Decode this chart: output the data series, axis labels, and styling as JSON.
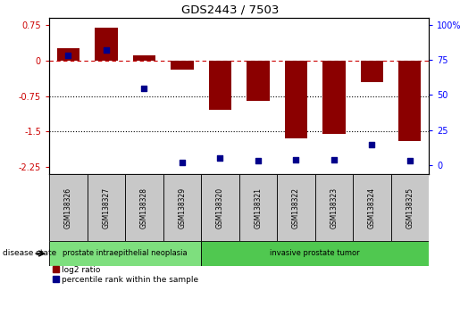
{
  "title": "GDS2443 / 7503",
  "samples": [
    "GSM138326",
    "GSM138327",
    "GSM138328",
    "GSM138329",
    "GSM138320",
    "GSM138321",
    "GSM138322",
    "GSM138323",
    "GSM138324",
    "GSM138325"
  ],
  "log2_ratio": [
    0.25,
    0.7,
    0.1,
    -0.2,
    -1.05,
    -0.85,
    -1.65,
    -1.55,
    -0.45,
    -1.7
  ],
  "percentile_rank": [
    78,
    82,
    55,
    2,
    5,
    3,
    4,
    4,
    15,
    3
  ],
  "groups": [
    {
      "label": "prostate intraepithelial neoplasia",
      "start": 0,
      "end": 4,
      "color": "#7EDF7E"
    },
    {
      "label": "invasive prostate tumor",
      "start": 4,
      "end": 10,
      "color": "#50C850"
    }
  ],
  "ylim_left": [
    -2.4,
    0.9
  ],
  "ylim_right": [
    -6.3,
    105
  ],
  "yticks_left": [
    0.75,
    0,
    -0.75,
    -1.5,
    -2.25
  ],
  "yticks_right": [
    100,
    75,
    50,
    25,
    0
  ],
  "bar_color": "#8B0000",
  "dot_color": "#00008B",
  "dotted_lines": [
    -0.75,
    -1.5
  ],
  "legend_items": [
    {
      "label": "log2 ratio",
      "color": "#8B0000"
    },
    {
      "label": "percentile rank within the sample",
      "color": "#00008B"
    }
  ],
  "bar_width": 0.6,
  "left_tick_labels": [
    "0.75",
    "0",
    "-0.75",
    "-1.5",
    "-2.25"
  ],
  "right_tick_labels": [
    "100%",
    "75",
    "50",
    "25",
    "0"
  ]
}
